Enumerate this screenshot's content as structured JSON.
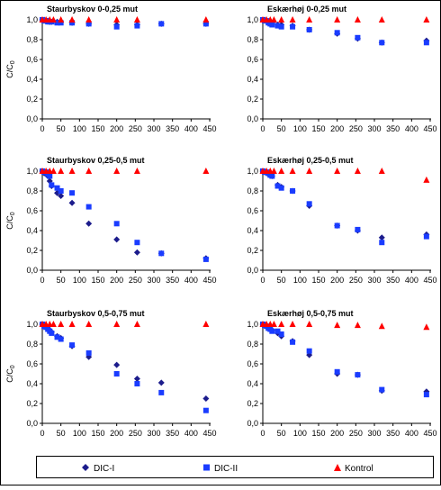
{
  "colors": {
    "dic1": "#1c1c8c",
    "dic2": "#1a3cff",
    "kontrol": "#ff0000",
    "axis": "#000000"
  },
  "legend": {
    "items": [
      {
        "key": "dic1",
        "label": "DIC-I",
        "marker": "diamond"
      },
      {
        "key": "dic2",
        "label": "DIC-II",
        "marker": "square"
      },
      {
        "key": "kontrol",
        "label": "Kontrol",
        "marker": "triangle"
      }
    ]
  },
  "chart_data": [
    {
      "type": "scatter",
      "title": "Staurbyskov 0-0,25 mut",
      "ylabel": "C/C0",
      "xlabel": "",
      "xlim": [
        0,
        450
      ],
      "ylim": [
        0,
        1
      ],
      "xticks": [
        "0",
        "50",
        "100",
        "150",
        "200",
        "250",
        "300",
        "350",
        "400",
        "450"
      ],
      "yticks": [
        "0,0",
        "0,2",
        "0,4",
        "0,6",
        "0,8",
        "1,0"
      ],
      "grid": false,
      "series": [
        {
          "name": "DIC-I",
          "key": "dic1",
          "x": [
            0,
            5,
            10,
            15,
            20,
            25,
            40,
            50,
            80,
            125,
            200,
            255,
            320,
            440
          ],
          "y": [
            1.0,
            1.0,
            0.99,
            0.99,
            0.98,
            0.98,
            0.98,
            0.98,
            0.97,
            0.96,
            0.95,
            0.95,
            0.96,
            0.96
          ]
        },
        {
          "name": "DIC-II",
          "key": "dic2",
          "x": [
            0,
            5,
            10,
            15,
            20,
            25,
            40,
            50,
            80,
            125,
            200,
            255,
            320,
            440
          ],
          "y": [
            1.0,
            0.99,
            0.99,
            0.98,
            0.98,
            0.98,
            0.97,
            0.97,
            0.97,
            0.96,
            0.93,
            0.94,
            0.96,
            0.96
          ]
        },
        {
          "name": "Kontrol",
          "key": "kontrol",
          "x": [
            0,
            10,
            20,
            30,
            50,
            80,
            125,
            200,
            255,
            440
          ],
          "y": [
            1.0,
            1.0,
            1.0,
            1.0,
            1.0,
            1.0,
            1.0,
            1.0,
            1.0,
            1.0
          ]
        }
      ]
    },
    {
      "type": "scatter",
      "title": "Eskærhøj 0-0,25 mut",
      "ylabel": "",
      "xlabel": "",
      "xlim": [
        0,
        450
      ],
      "ylim": [
        0,
        1
      ],
      "xticks": [
        "0",
        "50",
        "100",
        "150",
        "200",
        "250",
        "300",
        "350",
        "400",
        "450"
      ],
      "yticks": [
        "0,0",
        "0,2",
        "0,4",
        "0,6",
        "0,8",
        "1,0"
      ],
      "grid": false,
      "series": [
        {
          "name": "DIC-I",
          "key": "dic1",
          "x": [
            0,
            5,
            10,
            15,
            20,
            25,
            40,
            50,
            80,
            125,
            200,
            255,
            320,
            440
          ],
          "y": [
            1.0,
            1.0,
            0.99,
            0.98,
            0.97,
            0.97,
            0.95,
            0.95,
            0.94,
            0.9,
            0.86,
            0.81,
            0.77,
            0.79
          ]
        },
        {
          "name": "DIC-II",
          "key": "dic2",
          "x": [
            0,
            5,
            10,
            15,
            20,
            25,
            40,
            50,
            80,
            125,
            200,
            255,
            320,
            440
          ],
          "y": [
            1.0,
            0.99,
            0.99,
            0.97,
            0.96,
            0.95,
            0.94,
            0.93,
            0.93,
            0.9,
            0.87,
            0.82,
            0.77,
            0.77
          ]
        },
        {
          "name": "Kontrol",
          "key": "kontrol",
          "x": [
            0,
            10,
            20,
            30,
            50,
            80,
            125,
            200,
            255,
            320,
            440
          ],
          "y": [
            1.0,
            1.0,
            1.0,
            1.0,
            1.0,
            1.0,
            1.0,
            1.0,
            1.0,
            1.0,
            1.0
          ]
        }
      ]
    },
    {
      "type": "scatter",
      "title": "Staurbyskov 0,25-0,5 mut",
      "ylabel": "C/C0",
      "xlabel": "",
      "xlim": [
        0,
        450
      ],
      "ylim": [
        0,
        1
      ],
      "xticks": [
        "0",
        "50",
        "100",
        "150",
        "200",
        "250",
        "300",
        "350",
        "400",
        "450"
      ],
      "yticks": [
        "0,0",
        "0,2",
        "0,4",
        "0,6",
        "0,8",
        "1,0"
      ],
      "grid": false,
      "series": [
        {
          "name": "DIC-I",
          "key": "dic1",
          "x": [
            0,
            5,
            10,
            15,
            20,
            25,
            40,
            50,
            80,
            125,
            200,
            255,
            320,
            440
          ],
          "y": [
            1.0,
            0.98,
            0.97,
            0.95,
            0.9,
            0.85,
            0.78,
            0.75,
            0.68,
            0.47,
            0.31,
            0.18,
            0.17,
            0.12
          ]
        },
        {
          "name": "DIC-II",
          "key": "dic2",
          "x": [
            0,
            5,
            10,
            15,
            20,
            25,
            40,
            50,
            80,
            125,
            200,
            255,
            320,
            440
          ],
          "y": [
            1.0,
            0.99,
            0.99,
            0.97,
            0.95,
            0.86,
            0.83,
            0.8,
            0.78,
            0.64,
            0.47,
            0.28,
            0.17,
            0.11
          ]
        },
        {
          "name": "Kontrol",
          "key": "kontrol",
          "x": [
            0,
            10,
            20,
            30,
            50,
            80,
            125,
            200,
            255,
            440
          ],
          "y": [
            1.0,
            1.0,
            1.0,
            1.0,
            1.0,
            1.0,
            1.0,
            1.0,
            1.0,
            1.0
          ]
        }
      ]
    },
    {
      "type": "scatter",
      "title": "Eskærhøj 0,25-0,5 mut",
      "ylabel": "",
      "xlabel": "",
      "xlim": [
        0,
        450
      ],
      "ylim": [
        0,
        1
      ],
      "xticks": [
        "0",
        "50",
        "100",
        "150",
        "200",
        "250",
        "300",
        "350",
        "400",
        "450"
      ],
      "yticks": [
        "0,0",
        "0,2",
        "0,4",
        "0,6",
        "0,8",
        "1,0"
      ],
      "grid": false,
      "series": [
        {
          "name": "DIC-I",
          "key": "dic1",
          "x": [
            0,
            5,
            10,
            15,
            20,
            25,
            40,
            50,
            80,
            125,
            200,
            255,
            320,
            440
          ],
          "y": [
            1.0,
            0.99,
            0.98,
            0.97,
            0.96,
            0.95,
            0.86,
            0.84,
            0.8,
            0.65,
            0.45,
            0.4,
            0.33,
            0.36
          ]
        },
        {
          "name": "DIC-II",
          "key": "dic2",
          "x": [
            0,
            5,
            10,
            15,
            20,
            25,
            40,
            50,
            80,
            125,
            200,
            255,
            320,
            440
          ],
          "y": [
            1.0,
            0.99,
            0.99,
            0.98,
            0.96,
            0.95,
            0.85,
            0.83,
            0.8,
            0.67,
            0.45,
            0.41,
            0.28,
            0.34
          ]
        },
        {
          "name": "Kontrol",
          "key": "kontrol",
          "x": [
            0,
            10,
            20,
            30,
            50,
            80,
            125,
            200,
            255,
            320,
            440
          ],
          "y": [
            1.0,
            1.0,
            1.0,
            1.0,
            1.0,
            1.0,
            1.0,
            1.0,
            1.0,
            1.0,
            0.91
          ]
        }
      ]
    },
    {
      "type": "scatter",
      "title": "Staurbyskov 0,5-0,75 mut",
      "ylabel": "C/C0",
      "xlabel": "",
      "xlim": [
        0,
        450
      ],
      "ylim": [
        0,
        1
      ],
      "xticks": [
        "0",
        "50",
        "100",
        "150",
        "200",
        "250",
        "300",
        "350",
        "400",
        "450"
      ],
      "yticks": [
        "0,0",
        "0,2",
        "0,4",
        "0,6",
        "0,8",
        "1,0"
      ],
      "grid": false,
      "series": [
        {
          "name": "DIC-I",
          "key": "dic1",
          "x": [
            0,
            5,
            10,
            15,
            20,
            25,
            40,
            50,
            80,
            125,
            200,
            255,
            320,
            440
          ],
          "y": [
            1.0,
            0.98,
            0.97,
            0.96,
            0.94,
            0.92,
            0.88,
            0.86,
            0.78,
            0.67,
            0.59,
            0.45,
            0.41,
            0.25
          ]
        },
        {
          "name": "DIC-II",
          "key": "dic2",
          "x": [
            0,
            5,
            10,
            15,
            20,
            25,
            40,
            50,
            80,
            125,
            200,
            255,
            320,
            440
          ],
          "y": [
            1.0,
            0.98,
            0.97,
            0.95,
            0.93,
            0.91,
            0.87,
            0.85,
            0.79,
            0.71,
            0.5,
            0.4,
            0.31,
            0.13
          ]
        },
        {
          "name": "Kontrol",
          "key": "kontrol",
          "x": [
            0,
            10,
            20,
            30,
            50,
            80,
            125,
            200,
            255,
            440
          ],
          "y": [
            1.0,
            1.0,
            1.0,
            1.0,
            1.0,
            1.0,
            1.0,
            1.0,
            1.0,
            1.0
          ]
        }
      ]
    },
    {
      "type": "scatter",
      "title": "Eskærhøj 0,5-0,75 mut",
      "ylabel": "",
      "xlabel": "",
      "xlim": [
        0,
        450
      ],
      "ylim": [
        0,
        1
      ],
      "xticks": [
        "0",
        "50",
        "100",
        "150",
        "200",
        "250",
        "300",
        "350",
        "400",
        "450"
      ],
      "yticks": [
        "0,0",
        "0,2",
        "0,4",
        "0,6",
        "0,8",
        "1,0"
      ],
      "grid": false,
      "series": [
        {
          "name": "DIC-I",
          "key": "dic1",
          "x": [
            0,
            5,
            10,
            15,
            20,
            25,
            40,
            50,
            80,
            125,
            200,
            255,
            320,
            440
          ],
          "y": [
            1.0,
            0.99,
            0.98,
            0.97,
            0.96,
            0.94,
            0.91,
            0.88,
            0.83,
            0.69,
            0.5,
            0.49,
            0.33,
            0.32
          ]
        },
        {
          "name": "DIC-II",
          "key": "dic2",
          "x": [
            0,
            5,
            10,
            15,
            20,
            25,
            40,
            50,
            80,
            125,
            200,
            255,
            320,
            440
          ],
          "y": [
            1.0,
            0.99,
            0.98,
            0.96,
            0.95,
            0.93,
            0.93,
            0.9,
            0.82,
            0.73,
            0.52,
            0.49,
            0.34,
            0.29
          ]
        },
        {
          "name": "Kontrol",
          "key": "kontrol",
          "x": [
            0,
            10,
            20,
            30,
            50,
            80,
            125,
            200,
            255,
            320,
            440
          ],
          "y": [
            1.0,
            1.0,
            1.0,
            1.0,
            1.0,
            1.0,
            1.0,
            0.99,
            0.99,
            0.98,
            0.97
          ]
        }
      ]
    }
  ]
}
